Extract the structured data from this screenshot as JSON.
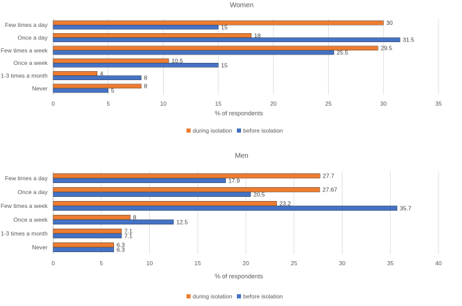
{
  "colors": {
    "during": "#ED7D31",
    "before": "#4472C4",
    "grid": "#d9d9d9",
    "axis": "#bfbfbf"
  },
  "chart_data": [
    {
      "type": "bar",
      "orientation": "horizontal",
      "title": "Women",
      "categories": [
        "Few times a day",
        "Once a day",
        "Few times a week",
        "Once a week",
        "1-3 times a month",
        "Never"
      ],
      "series": [
        {
          "name": "during isolation",
          "values": [
            30,
            18,
            29.5,
            10.5,
            4,
            8
          ],
          "labels": [
            "30",
            "18",
            "29.5",
            "10.5",
            "4",
            "8"
          ]
        },
        {
          "name": "before isolation",
          "values": [
            15,
            31.5,
            25.5,
            15,
            8,
            5
          ],
          "labels": [
            "15",
            "31.5",
            "25.5",
            "15",
            "8",
            "5"
          ]
        }
      ],
      "xlabel": "% of respondents",
      "xlim": [
        0,
        35
      ],
      "xticks": [
        0,
        5,
        10,
        15,
        20,
        25,
        30,
        35
      ],
      "grid": true,
      "legend_position": "bottom"
    },
    {
      "type": "bar",
      "orientation": "horizontal",
      "title": "Men",
      "categories": [
        "Few times a day",
        "Once a day",
        "Few times a week",
        "Once a week",
        "1-3 times a month",
        "Never"
      ],
      "series": [
        {
          "name": "during isolation",
          "values": [
            27.7,
            27.67,
            23.2,
            8,
            7.1,
            6.3
          ],
          "labels": [
            "27.7",
            "27.67",
            "23.2",
            "8",
            "7.1",
            "6.3"
          ]
        },
        {
          "name": "before isolation",
          "values": [
            17.9,
            20.5,
            35.7,
            12.5,
            7.1,
            6.3
          ],
          "labels": [
            "17.9",
            "20.5",
            "35.7",
            "12.5",
            "7.1",
            "6.3"
          ]
        }
      ],
      "xlabel": "% of respondents",
      "xlim": [
        0,
        40
      ],
      "xticks": [
        0,
        5,
        10,
        15,
        20,
        25,
        30,
        35,
        40
      ],
      "grid": true,
      "legend_position": "bottom"
    }
  ]
}
